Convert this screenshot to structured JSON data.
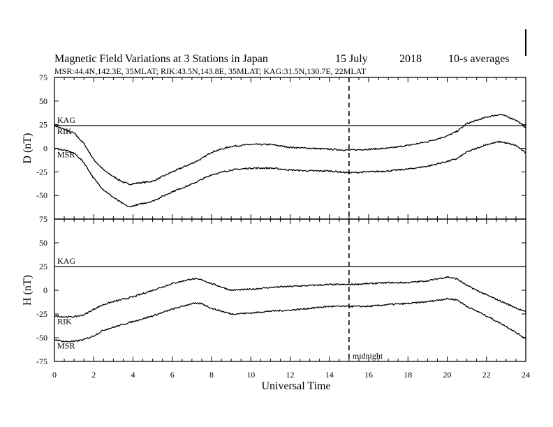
{
  "header": {
    "title": "Magnetic Field Variations at 3 Stations in Japan",
    "date_day": "15 July",
    "date_year": "2018",
    "averaging": "10-s averages",
    "stations_line": "MSR:44.4N,142.3E, 35MLAT;  RIK:43.5N,143.8E, 35MLAT;  KAG:31.5N,130.7E, 22MLAT"
  },
  "chart_data": {
    "type": "line",
    "xlabel": "Universal Time",
    "xlim": [
      0,
      24
    ],
    "xticks": [
      "0",
      "2",
      "4",
      "6",
      "8",
      "10",
      "12",
      "14",
      "16",
      "18",
      "20",
      "22",
      "24"
    ],
    "yticks": [
      "75",
      "50",
      "25",
      "0",
      "-25",
      "-50",
      "-75"
    ],
    "annotation": {
      "x": 15,
      "label": "midnight"
    },
    "panels": [
      {
        "ylabel": "D (nT)",
        "ylim": [
          -75,
          75
        ],
        "series": [
          {
            "name": "KAG",
            "x": [
              0,
              24
            ],
            "y": [
              24,
              24
            ]
          },
          {
            "name": "RIK",
            "x": [
              0,
              0.5,
              1,
              1.5,
              2,
              2.5,
              3,
              3.5,
              3.8,
              4.2,
              5,
              6,
              7,
              7.5,
              8,
              9,
              10,
              11,
              12,
              13,
              14,
              15,
              16,
              17,
              18,
              19,
              20,
              20.5,
              21,
              22,
              22.7,
              23.5,
              24
            ],
            "y": [
              24,
              20,
              16,
              5,
              -12,
              -23,
              -30,
              -36,
              -38,
              -37,
              -35,
              -25,
              -16,
              -11,
              -4,
              2,
              4,
              4,
              1,
              0,
              -1,
              -2,
              -1,
              0,
              3,
              7,
              13,
              18,
              26,
              33,
              36,
              30,
              22
            ]
          },
          {
            "name": "MSR",
            "x": [
              0,
              0.5,
              1,
              1.5,
              2,
              2.5,
              3,
              3.5,
              3.8,
              4.2,
              5,
              6,
              7,
              7.5,
              8,
              9,
              10,
              11,
              12,
              13,
              14,
              15,
              16,
              17,
              18,
              19,
              20,
              20.5,
              21,
              22,
              22.7,
              23.5,
              24
            ],
            "y": [
              0,
              -2,
              -5,
              -15,
              -32,
              -44,
              -52,
              -59,
              -62,
              -60,
              -56,
              -46,
              -38,
              -33,
              -28,
              -23,
              -21,
              -21,
              -23,
              -24,
              -24,
              -26,
              -25,
              -24,
              -22,
              -19,
              -14,
              -11,
              -4,
              4,
              7,
              3,
              -5
            ]
          }
        ]
      },
      {
        "ylabel": "H (nT)",
        "ylim": [
          -75,
          75
        ],
        "series": [
          {
            "name": "KAG",
            "x": [
              0,
              24
            ],
            "y": [
              25,
              25
            ]
          },
          {
            "name": "RIK",
            "x": [
              0,
              0.5,
              1,
              1.5,
              2,
              2.5,
              3,
              4,
              5,
              6,
              7,
              7.5,
              8,
              9,
              10,
              11,
              12,
              13,
              14,
              15,
              16,
              17,
              18,
              19,
              20,
              20.5,
              21,
              22,
              23,
              24
            ],
            "y": [
              -27,
              -28,
              -28,
              -26,
              -20,
              -15,
              -12,
              -7,
              0,
              7,
              12,
              11,
              7,
              0,
              1,
              3,
              4,
              5,
              6,
              6,
              7,
              8,
              8,
              10,
              14,
              12,
              5,
              -5,
              -14,
              -23
            ]
          },
          {
            "name": "MSR",
            "x": [
              0,
              0.5,
              1,
              1.5,
              2,
              2.5,
              3,
              4,
              5,
              6,
              7,
              7.5,
              8,
              9,
              10,
              11,
              12,
              13,
              14,
              15,
              16,
              17,
              18,
              19,
              20,
              20.5,
              21,
              22,
              23,
              24
            ],
            "y": [
              -52,
              -54,
              -54,
              -52,
              -48,
              -42,
              -39,
              -33,
              -27,
              -20,
              -14,
              -14,
              -19,
              -25,
              -24,
              -22,
              -21,
              -19,
              -17,
              -17,
              -17,
              -15,
              -14,
              -12,
              -9,
              -10,
              -17,
              -27,
              -38,
              -51
            ]
          }
        ]
      }
    ]
  }
}
